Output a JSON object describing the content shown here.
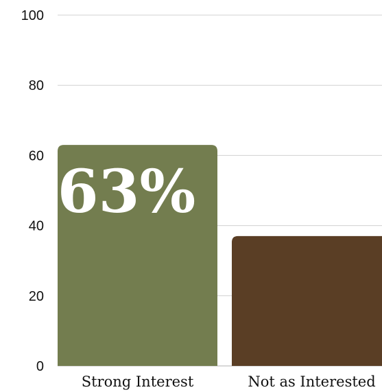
{
  "chart_data": {
    "type": "bar",
    "categories": [
      "Strong Interest",
      "Not as Interested"
    ],
    "values": [
      63,
      37
    ],
    "data_labels": [
      "63%",
      ""
    ],
    "colors": [
      "#737d4f",
      "#5a3e25"
    ],
    "ylim": [
      0,
      100
    ],
    "yticks": [
      0,
      20,
      40,
      60,
      80,
      100
    ],
    "grid": true,
    "legend": "none",
    "title": "",
    "xlabel": "",
    "ylabel": ""
  }
}
